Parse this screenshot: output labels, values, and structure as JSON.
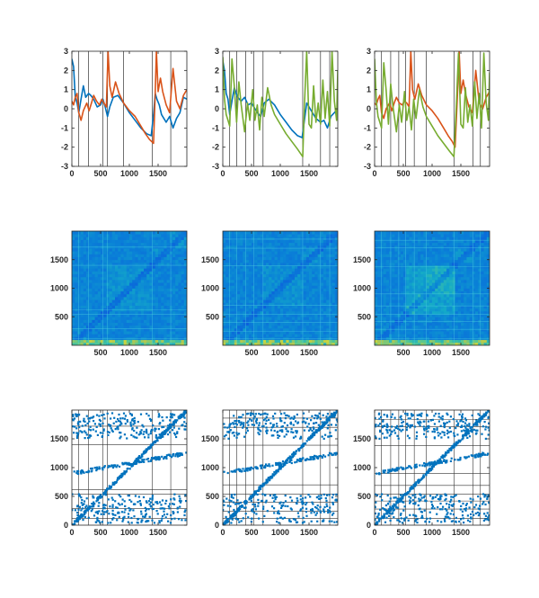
{
  "colors": {
    "blue": "#0072BD",
    "orange": "#D95319",
    "green": "#77AC30",
    "axis": "#262626",
    "grid": "#333333"
  },
  "chart_data": [
    {
      "type": "line",
      "xlim": [
        0,
        2000
      ],
      "ylim": [
        -3,
        3
      ],
      "xticks": [
        "0",
        "500",
        "1000",
        "1500"
      ],
      "yticks": [
        "-3",
        "-2",
        "-1",
        "0",
        "1",
        "2",
        "3"
      ],
      "vlines": [
        120,
        290,
        540,
        620,
        900,
        1400,
        1720
      ],
      "series": [
        {
          "color": "blue",
          "x": [
            0,
            30,
            60,
            90,
            120,
            160,
            200,
            240,
            290,
            330,
            380,
            440,
            500,
            540,
            580,
            620,
            660,
            720,
            800,
            900,
            1000,
            1100,
            1200,
            1300,
            1380,
            1420,
            1450,
            1480,
            1520,
            1560,
            1600,
            1640,
            1700,
            1760,
            1820,
            1880,
            1940,
            2000
          ],
          "y": [
            2.6,
            2.2,
            0.6,
            0.3,
            -0.2,
            0.5,
            1.2,
            0.6,
            0.8,
            0.7,
            0.5,
            0.1,
            0.2,
            0.5,
            0.1,
            -0.4,
            0.1,
            0.6,
            0.7,
            0.3,
            -0.2,
            -0.6,
            -1.0,
            -1.3,
            -1.4,
            -0.3,
            0.8,
            0.5,
            0.2,
            -0.3,
            -0.5,
            -0.7,
            -0.4,
            -1.0,
            -0.5,
            -0.2,
            0.6,
            0.5
          ]
        },
        {
          "color": "orange",
          "x": [
            0,
            30,
            60,
            90,
            120,
            160,
            200,
            260,
            300,
            340,
            380,
            430,
            480,
            520,
            560,
            600,
            630,
            660,
            700,
            760,
            820,
            900,
            1000,
            1100,
            1200,
            1280,
            1350,
            1420,
            1450,
            1470,
            1500,
            1540,
            1580,
            1640,
            1700,
            1760,
            1820,
            1880,
            1940,
            2000
          ],
          "y": [
            0.4,
            0.2,
            0.6,
            0.8,
            -0.2,
            -0.6,
            -0.1,
            0.3,
            -0.1,
            0.3,
            0.7,
            0.4,
            0.2,
            0.5,
            0.3,
            0.1,
            3.0,
            1.2,
            0.6,
            1.4,
            0.8,
            0.3,
            -0.1,
            -0.4,
            -0.9,
            -1.3,
            -1.6,
            -1.8,
            0.8,
            3.0,
            0.9,
            1.6,
            0.9,
            0.2,
            -0.2,
            2.1,
            0.4,
            0.0,
            0.7,
            1.0
          ]
        }
      ]
    },
    {
      "type": "line",
      "xlim": [
        0,
        2000
      ],
      "ylim": [
        -3,
        3
      ],
      "xticks": [
        "0",
        "500",
        "1000",
        "1500"
      ],
      "yticks": [
        "-3",
        "-2",
        "-1",
        "0",
        "1",
        "2",
        "3"
      ],
      "vlines": [
        120,
        240,
        400,
        540,
        700,
        1390,
        1700,
        1860
      ],
      "series": [
        {
          "color": "blue",
          "x": [
            0,
            30,
            60,
            90,
            120,
            160,
            200,
            260,
            320,
            380,
            440,
            500,
            540,
            600,
            660,
            720,
            800,
            900,
            1000,
            1100,
            1200,
            1300,
            1380,
            1420,
            1460,
            1500,
            1560,
            1620,
            1700,
            1760,
            1820,
            1880,
            1940,
            2000
          ],
          "y": [
            2.5,
            2.0,
            0.8,
            0.5,
            -0.3,
            0.4,
            1.1,
            0.6,
            0.4,
            0.6,
            0.2,
            0.3,
            0.1,
            -0.2,
            -0.4,
            0.3,
            0.5,
            0.2,
            -0.3,
            -0.7,
            -1.1,
            -1.4,
            -1.5,
            -0.6,
            0.3,
            0.1,
            -0.2,
            -0.5,
            -0.7,
            -0.6,
            -1.0,
            -0.4,
            -0.2,
            0.0
          ]
        },
        {
          "color": "green",
          "x": [
            0,
            30,
            60,
            90,
            120,
            160,
            200,
            240,
            280,
            320,
            380,
            430,
            470,
            520,
            560,
            600,
            640,
            680,
            720,
            780,
            840,
            900,
            1000,
            1100,
            1200,
            1300,
            1390,
            1420,
            1460,
            1500,
            1540,
            1580,
            1620,
            1660,
            1700,
            1740,
            1780,
            1820,
            1860,
            1900,
            1940,
            1980,
            2000
          ],
          "y": [
            2.7,
            0.5,
            -0.3,
            -0.6,
            -0.9,
            2.6,
            1.2,
            -0.7,
            1.4,
            0.2,
            -1.2,
            0.3,
            -0.6,
            1.0,
            -0.6,
            0.2,
            -1.1,
            0.6,
            -0.4,
            1.1,
            0.2,
            -0.3,
            -0.8,
            -1.3,
            -1.7,
            -2.1,
            -2.5,
            0.2,
            3.0,
            -0.8,
            -1.0,
            1.2,
            -0.7,
            0.3,
            -0.8,
            1.5,
            -0.5,
            0.9,
            -0.9,
            3.0,
            0.4,
            -0.6,
            2.0
          ]
        }
      ]
    },
    {
      "type": "line",
      "xlim": [
        0,
        2000
      ],
      "ylim": [
        -3,
        3
      ],
      "xticks": [
        "0",
        "500",
        "1000",
        "1500"
      ],
      "yticks": [
        "-3",
        "-2",
        "-1",
        "0",
        "1",
        "2",
        "3"
      ],
      "vlines": [
        120,
        280,
        420,
        540,
        690,
        900,
        1380,
        1710,
        1840
      ],
      "series": [
        {
          "color": "orange",
          "x": [
            0,
            30,
            60,
            90,
            120,
            160,
            200,
            260,
            300,
            340,
            380,
            430,
            480,
            520,
            560,
            600,
            630,
            660,
            700,
            760,
            820,
            900,
            1000,
            1100,
            1200,
            1280,
            1350,
            1400,
            1440,
            1470,
            1500,
            1540,
            1580,
            1640,
            1700,
            1760,
            1820,
            1880,
            1940,
            2000
          ],
          "y": [
            0.3,
            0.2,
            0.5,
            0.7,
            -0.2,
            -0.5,
            0.0,
            0.3,
            -0.1,
            0.3,
            0.6,
            0.3,
            0.2,
            0.4,
            0.3,
            0.1,
            3.0,
            1.0,
            0.5,
            1.3,
            0.7,
            0.2,
            -0.1,
            -0.5,
            -1.0,
            -1.4,
            -1.7,
            -2.0,
            0.7,
            3.0,
            0.8,
            1.5,
            0.8,
            0.1,
            -0.2,
            2.0,
            0.3,
            0.0,
            0.6,
            0.9
          ]
        },
        {
          "color": "green",
          "x": [
            0,
            30,
            60,
            90,
            120,
            160,
            200,
            240,
            280,
            320,
            380,
            430,
            470,
            520,
            560,
            600,
            640,
            680,
            720,
            780,
            840,
            900,
            1000,
            1100,
            1200,
            1300,
            1380,
            1420,
            1460,
            1500,
            1540,
            1580,
            1620,
            1660,
            1700,
            1740,
            1780,
            1820,
            1860,
            1900,
            1940,
            1980,
            2000
          ],
          "y": [
            2.6,
            0.4,
            -0.4,
            -0.7,
            -1.0,
            2.4,
            1.0,
            -0.8,
            1.3,
            0.1,
            -1.2,
            0.2,
            -0.7,
            0.9,
            -0.6,
            0.1,
            -1.1,
            0.5,
            -0.5,
            1.0,
            0.1,
            -0.4,
            -0.9,
            -1.4,
            -1.8,
            -2.2,
            -2.5,
            0.1,
            2.9,
            -0.8,
            -1.0,
            1.1,
            -0.7,
            0.2,
            -0.9,
            1.4,
            -0.5,
            0.8,
            -1.0,
            2.9,
            0.3,
            -0.6,
            1.9
          ]
        }
      ]
    },
    {
      "type": "heatmap",
      "xlim": [
        0,
        2000
      ],
      "ylim": [
        0,
        2000
      ],
      "xticks": [
        "500",
        "1000",
        "1500"
      ],
      "yticks": [
        "500",
        "1000",
        "1500"
      ],
      "boundaries": [
        120,
        290,
        540,
        620,
        1400,
        1720
      ]
    },
    {
      "type": "heatmap",
      "xlim": [
        0,
        2000
      ],
      "ylim": [
        0,
        2000
      ],
      "xticks": [
        "500",
        "1000",
        "1500"
      ],
      "yticks": [
        "500",
        "1000",
        "1500"
      ],
      "boundaries": [
        120,
        240,
        400,
        540,
        700,
        1390,
        1700,
        1860
      ]
    },
    {
      "type": "heatmap",
      "xlim": [
        0,
        2000
      ],
      "ylim": [
        0,
        2000
      ],
      "xticks": [
        "500",
        "1000",
        "1500"
      ],
      "yticks": [
        "500",
        "1000",
        "1500"
      ],
      "boundaries": [
        120,
        280,
        420,
        540,
        690,
        900,
        1380,
        1710,
        1840
      ]
    },
    {
      "type": "scatter",
      "xlim": [
        0,
        2000
      ],
      "ylim": [
        0,
        2000
      ],
      "xticks": [
        "0",
        "500",
        "1000",
        "1500"
      ],
      "yticks": [
        "0",
        "500",
        "1000",
        "1500"
      ],
      "boundaries": [
        120,
        290,
        540,
        620,
        1400,
        1720
      ]
    },
    {
      "type": "scatter",
      "xlim": [
        0,
        2000
      ],
      "ylim": [
        0,
        2000
      ],
      "xticks": [
        "0",
        "500",
        "1000",
        "1500"
      ],
      "yticks": [
        "0",
        "500",
        "1000",
        "1500"
      ],
      "boundaries": [
        120,
        240,
        400,
        540,
        700,
        1390,
        1700,
        1860
      ]
    },
    {
      "type": "scatter",
      "xlim": [
        0,
        2000
      ],
      "ylim": [
        0,
        2000
      ],
      "xticks": [
        "0",
        "500",
        "1000",
        "1500"
      ],
      "yticks": [
        "0",
        "500",
        "1000",
        "1500"
      ],
      "boundaries": [
        120,
        280,
        420,
        540,
        690,
        900,
        1380,
        1710,
        1840
      ]
    }
  ]
}
